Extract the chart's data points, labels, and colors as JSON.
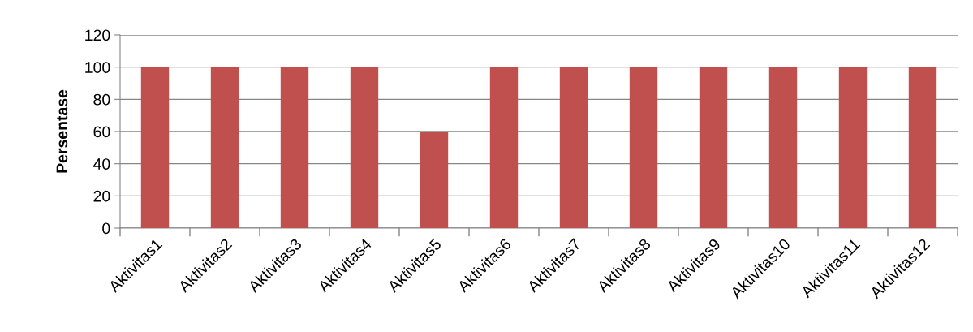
{
  "chart_data": {
    "type": "bar",
    "ylabel": "Persentase",
    "categories": [
      "Aktivitas1",
      "Aktivitas2",
      "Aktivitas3",
      "Aktivitas4",
      "Aktivitas5",
      "Aktivitas6",
      "Aktivitas7",
      "Aktivitas8",
      "Aktivitas9",
      "Aktivitas10",
      "Aktivitas11",
      "Aktivitas12"
    ],
    "values": [
      100,
      100,
      100,
      100,
      60,
      100,
      100,
      100,
      100,
      100,
      100,
      100
    ],
    "color": "#c0504d",
    "ylim": [
      0,
      120
    ],
    "yticks": [
      0,
      20,
      40,
      60,
      80,
      100,
      120
    ],
    "grid": "y"
  }
}
